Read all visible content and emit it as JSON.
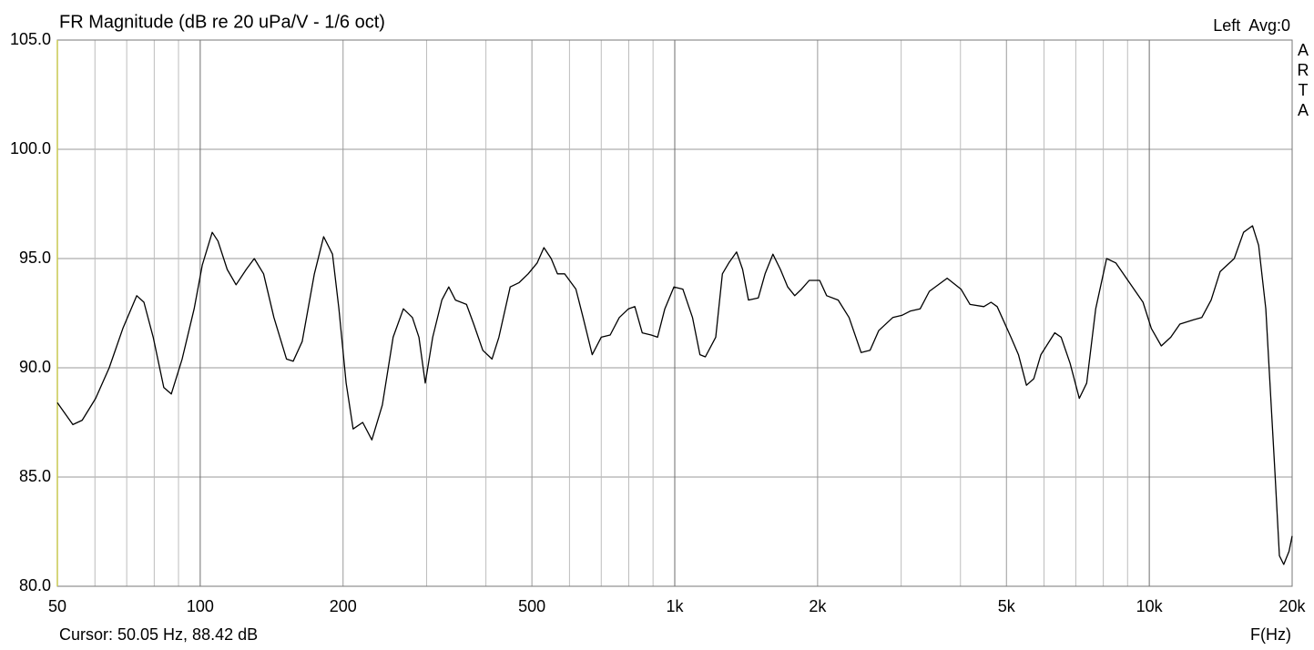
{
  "chart_data": {
    "type": "line",
    "title": "FR Magnitude (dB re 20 uPa/V - 1/6 oct)",
    "channel_label": "Left  Avg:0",
    "watermark": "ARTA",
    "cursor_text": "Cursor: 50.05 Hz, 88.42 dB",
    "x_label": "F(Hz)",
    "xscale": "log",
    "grid": true,
    "color": "#000000",
    "xlim": [
      50,
      20000
    ],
    "ylim": [
      80,
      105
    ],
    "xticks": [
      50,
      100,
      200,
      500,
      {
        "value": 1000,
        "label": "1k"
      },
      {
        "value": 2000,
        "label": "2k"
      },
      {
        "value": 5000,
        "label": "5k"
      },
      {
        "value": 10000,
        "label": "10k"
      },
      {
        "value": 20000,
        "label": "20k"
      }
    ],
    "xminor_ticks": [
      60,
      70,
      80,
      90,
      300,
      400,
      600,
      700,
      800,
      900,
      3000,
      4000,
      6000,
      7000,
      8000,
      9000
    ],
    "yticks": [
      {
        "value": 80,
        "label": "80.0"
      },
      {
        "value": 85,
        "label": "85.0"
      },
      {
        "value": 90,
        "label": "90.0"
      },
      {
        "value": 95,
        "label": "95.0"
      },
      {
        "value": 100,
        "label": "100.0"
      },
      {
        "value": 105,
        "label": "105.0"
      }
    ],
    "x": [
      50,
      53.9,
      56.4,
      60.2,
      64.3,
      68.7,
      73.5,
      76.1,
      79.6,
      83.8,
      86.9,
      91.6,
      97.1,
      101,
      106,
      109,
      114,
      119,
      125,
      130,
      136,
      143,
      152,
      157,
      164,
      174,
      182,
      190,
      196,
      203,
      210,
      220,
      230,
      242,
      255,
      268,
      280,
      289,
      298,
      309,
      323,
      334,
      345,
      364,
      377,
      394,
      412,
      426,
      450,
      470,
      491,
      513,
      530,
      549,
      566,
      586,
      619,
      641,
      670,
      700,
      731,
      764,
      799,
      824,
      854,
      892,
      920,
      953,
      996,
      1040,
      1090,
      1130,
      1160,
      1220,
      1260,
      1300,
      1350,
      1390,
      1430,
      1500,
      1550,
      1610,
      1670,
      1730,
      1790,
      1850,
      1920,
      2020,
      2090,
      2210,
      2330,
      2470,
      2580,
      2690,
      2880,
      3010,
      3140,
      3290,
      3440,
      3750,
      4010,
      4190,
      4480,
      4640,
      4780,
      5110,
      5300,
      5510,
      5710,
      5910,
      6320,
      6520,
      6810,
      7120,
      7380,
      7710,
      8130,
      8500,
      9080,
      9700,
      10100,
      10600,
      11100,
      11600,
      12400,
      12900,
      13500,
      14100,
      15100,
      15800,
      16500,
      17000,
      17600,
      18400,
      18800,
      19200,
      19700,
      20000
    ],
    "values": [
      88.4,
      87.4,
      87.6,
      88.6,
      90.0,
      91.8,
      93.3,
      93.0,
      91.4,
      89.1,
      88.8,
      90.4,
      92.7,
      94.7,
      96.2,
      95.8,
      94.5,
      93.8,
      94.5,
      95.0,
      94.3,
      92.3,
      90.4,
      90.3,
      91.2,
      94.3,
      96.0,
      95.2,
      92.7,
      89.3,
      87.2,
      87.5,
      86.7,
      88.3,
      91.4,
      92.7,
      92.3,
      91.4,
      89.3,
      91.4,
      93.1,
      93.7,
      93.1,
      92.9,
      92.0,
      90.8,
      90.4,
      91.4,
      93.7,
      93.9,
      94.3,
      94.8,
      95.5,
      95.0,
      94.3,
      94.3,
      93.6,
      92.3,
      90.6,
      91.4,
      91.5,
      92.3,
      92.7,
      92.8,
      91.6,
      91.5,
      91.4,
      92.7,
      93.7,
      93.6,
      92.3,
      90.6,
      90.5,
      91.4,
      94.3,
      94.8,
      95.3,
      94.5,
      93.1,
      93.2,
      94.3,
      95.2,
      94.5,
      93.7,
      93.3,
      93.6,
      94.0,
      94.0,
      93.3,
      93.1,
      92.3,
      90.7,
      90.8,
      91.7,
      92.3,
      92.4,
      92.6,
      92.7,
      93.5,
      94.1,
      93.6,
      92.9,
      92.8,
      93.0,
      92.8,
      91.4,
      90.6,
      89.2,
      89.5,
      90.6,
      91.6,
      91.4,
      90.2,
      88.6,
      89.3,
      92.7,
      95.0,
      94.8,
      93.9,
      93.0,
      91.8,
      91.0,
      91.4,
      92.0,
      92.2,
      92.3,
      93.1,
      94.4,
      95.0,
      96.2,
      96.5,
      95.6,
      92.7,
      85.2,
      81.4,
      81.0,
      81.6,
      82.3
    ]
  }
}
